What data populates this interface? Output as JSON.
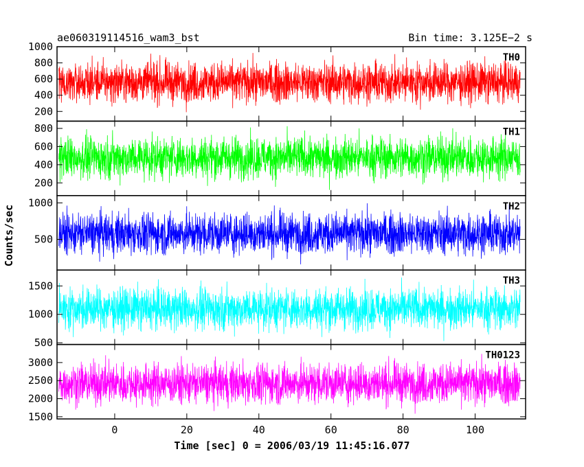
{
  "title_left": "ae060319114516_wam3_bst",
  "title_right": "Bin time: 3.125E−2 s",
  "chart_data": {
    "type": "line",
    "xlabel": "Time [sec] 0 = 2006/03/19 11:45:16.077",
    "ylabel": "Counts/sec",
    "xlim": [
      -16,
      114
    ],
    "xticks": [
      0,
      20,
      40,
      60,
      80,
      100
    ],
    "bin_time_s": 0.03125,
    "data_range": [
      -15.5,
      112.5
    ],
    "grid": false,
    "panels": [
      {
        "name": "TH0",
        "color": "#ff0000",
        "ylim": [
          80,
          1000
        ],
        "yticks": [
          200,
          400,
          600,
          800,
          1000
        ],
        "ytick_labels": [
          "200",
          "400",
          "600",
          "800",
          "1000"
        ],
        "mean": 560,
        "spread": 420,
        "min": 110,
        "max": 1000
      },
      {
        "name": "TH1",
        "color": "#00ff00",
        "ylim": [
          60,
          880
        ],
        "yticks": [
          200,
          400,
          600,
          800
        ],
        "ytick_labels": [
          "200",
          "400",
          "600",
          "800"
        ],
        "mean": 480,
        "spread": 390,
        "min": 90,
        "max": 880
      },
      {
        "name": "TH2",
        "color": "#0000ff",
        "ylim": [
          80,
          1100
        ],
        "yticks": [
          500,
          1000
        ],
        "ytick_labels": [
          "500",
          "1000"
        ],
        "mean": 580,
        "spread": 480,
        "min": 110,
        "max": 1100
      },
      {
        "name": "TH3",
        "color": "#00ffff",
        "ylim": [
          470,
          1780
        ],
        "yticks": [
          500,
          1000,
          1500
        ],
        "ytick_labels": [
          "500",
          "1000",
          "1500"
        ],
        "mean": 1100,
        "spread": 620,
        "min": 480,
        "max": 1780
      },
      {
        "name": "TH0123",
        "color": "#ff00ff",
        "ylim": [
          1440,
          3500
        ],
        "yticks": [
          1500,
          2000,
          2500,
          3000
        ],
        "ytick_labels": [
          "1500",
          "2000",
          "2500",
          "3000"
        ],
        "mean": 2420,
        "spread": 950,
        "min": 1460,
        "max": 3440
      }
    ]
  }
}
